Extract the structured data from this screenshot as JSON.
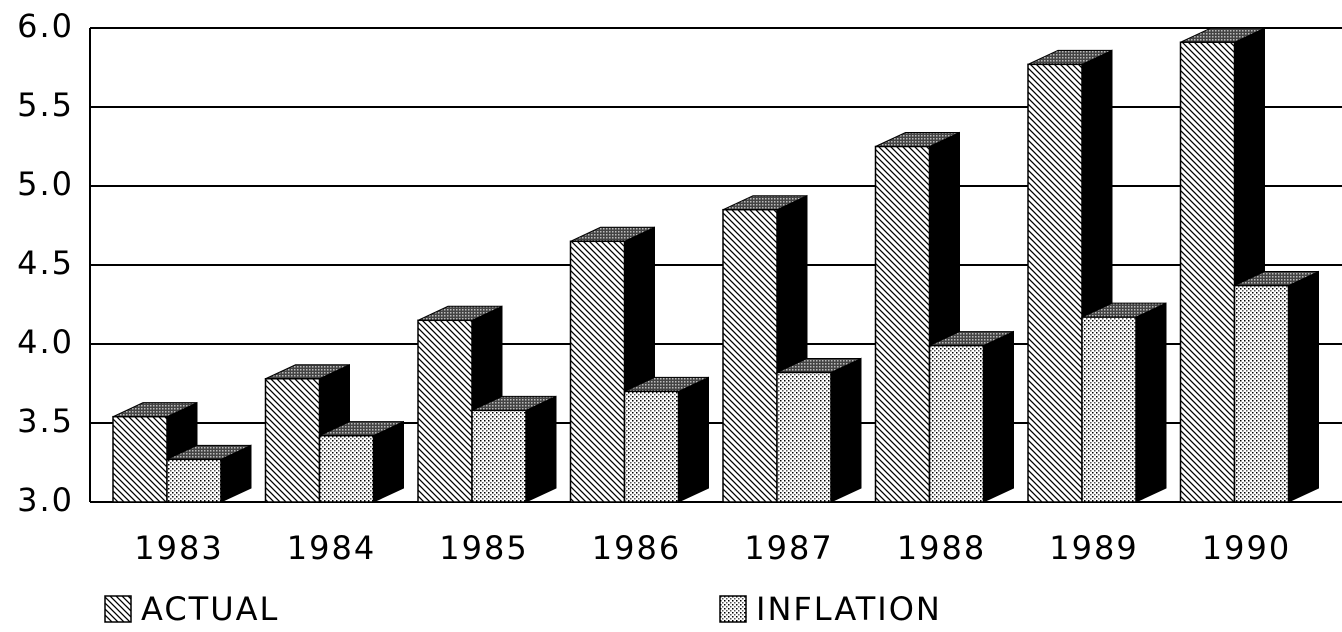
{
  "chart_data": {
    "type": "bar3d",
    "categories": [
      "1983",
      "1984",
      "1985",
      "1986",
      "1987",
      "1988",
      "1989",
      "1990"
    ],
    "series": [
      {
        "name": "ACTUAL",
        "values": [
          3.54,
          3.78,
          4.15,
          4.65,
          4.85,
          5.25,
          5.77,
          5.91
        ]
      },
      {
        "name": "INFLATION",
        "values": [
          3.27,
          3.42,
          3.58,
          3.7,
          3.82,
          3.99,
          4.17,
          4.37
        ]
      }
    ],
    "ylim": [
      3.0,
      6.0
    ],
    "yticks": [
      {
        "value": 3.0,
        "label": "3.0"
      },
      3.5,
      {
        "value": 4.0,
        "label": "4.0"
      },
      4.5,
      {
        "value": 5.0,
        "label": "5.0"
      },
      5.5,
      {
        "value": 6.0,
        "label": "6.0"
      }
    ],
    "grid": true
  }
}
